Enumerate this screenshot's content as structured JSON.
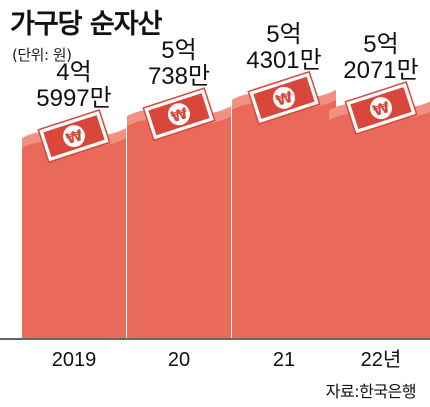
{
  "chart_data": {
    "type": "bar",
    "title": "가구당 순자산",
    "unit_label": "(단위: 원)",
    "source": "자료:한국은행",
    "categories": [
      "2019",
      "20",
      "21",
      "22년"
    ],
    "values": [
      459970000,
      507380000,
      543010000,
      520710000
    ],
    "value_labels": [
      {
        "line1": "4억",
        "line2": "5997만"
      },
      {
        "line1": "5억",
        "line2": "738만"
      },
      {
        "line1": "5억",
        "line2": "4301만"
      },
      {
        "line1": "5억",
        "line2": "2071만"
      }
    ],
    "ylim": [
      0,
      560000000
    ],
    "grid": false,
    "bar_color": "#ea6a5a",
    "bar_top_color": "#f6b1a6",
    "banknote_symbol": "₩",
    "banknote_color": "#d9463a"
  }
}
